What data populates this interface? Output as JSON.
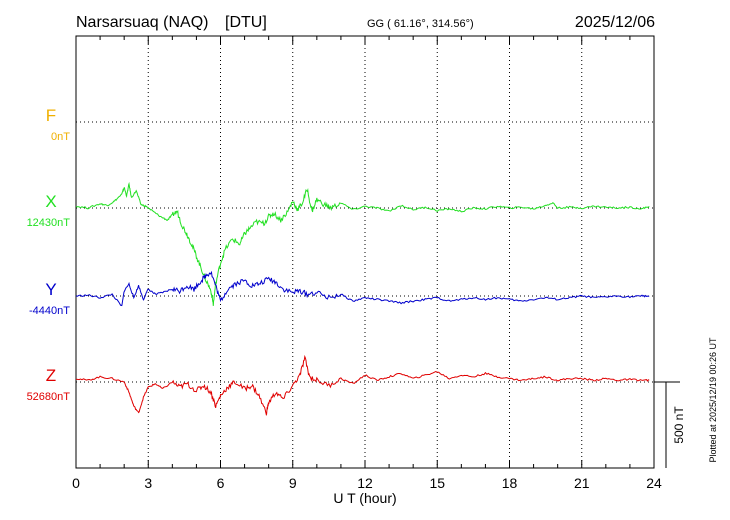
{
  "header": {
    "station": "Narsarsuaq (NAQ)",
    "source": "[DTU]",
    "coords": "GG ( 61.16°, 314.56°)",
    "date": "2025/12/06"
  },
  "footer": {
    "plotted": "Plotted at 2025/12/19 00:26 UT"
  },
  "colors": {
    "F": "#f0b000",
    "X": "#22e022",
    "Y": "#0000cc",
    "Z": "#e00000",
    "grid": "#000000"
  },
  "chart_data": {
    "type": "line",
    "xlabel": "U T (hour)",
    "xlim": [
      0,
      24
    ],
    "xticks": [
      "0",
      "3",
      "6",
      "9",
      "12",
      "15",
      "18",
      "21",
      "24"
    ],
    "scale_bar_label": "500 nT",
    "scale_bar_nT": 500,
    "series": [
      {
        "name": "F",
        "baseline_label": "0nT",
        "baseline_nT": 0,
        "x": [],
        "values": []
      },
      {
        "name": "X",
        "baseline_label": "12430nT",
        "baseline_nT": 12430,
        "x": [
          0,
          0.5,
          1.0,
          1.3,
          1.6,
          1.9,
          2.0,
          2.1,
          2.2,
          2.3,
          2.5,
          2.7,
          2.9,
          3.2,
          3.5,
          3.8,
          4.0,
          4.2,
          4.4,
          4.6,
          4.8,
          5.0,
          5.2,
          5.4,
          5.6,
          5.7,
          5.8,
          6.0,
          6.2,
          6.5,
          6.8,
          7.0,
          7.2,
          7.5,
          7.8,
          8.0,
          8.2,
          8.5,
          8.8,
          9.0,
          9.2,
          9.4,
          9.6,
          9.8,
          10.0,
          10.3,
          10.6,
          11.0,
          11.5,
          12.0,
          12.5,
          13.0,
          13.5,
          14.0,
          14.5,
          15.0,
          15.5,
          16.0,
          16.5,
          17.0,
          17.5,
          18.0,
          18.5,
          19.0,
          19.5,
          19.8,
          20.0,
          20.5,
          21.0,
          21.5,
          22.0,
          22.5,
          23.0,
          23.5,
          23.8
        ],
        "values": [
          10,
          0,
          25,
          15,
          40,
          80,
          120,
          70,
          140,
          60,
          100,
          20,
          10,
          -20,
          -50,
          -70,
          -40,
          -20,
          -100,
          -150,
          -210,
          -280,
          -350,
          -420,
          -480,
          -560,
          -440,
          -320,
          -240,
          -180,
          -210,
          -150,
          -120,
          -80,
          -90,
          -50,
          -30,
          -70,
          -20,
          40,
          -10,
          30,
          110,
          -20,
          50,
          20,
          0,
          30,
          -10,
          10,
          0,
          -20,
          15,
          -10,
          5,
          -15,
          -5,
          -20,
          0,
          -5,
          10,
          0,
          5,
          -5,
          15,
          30,
          0,
          5,
          0,
          10,
          5,
          0,
          5,
          -5,
          10
        ]
      },
      {
        "name": "Y",
        "baseline_label": "-4440nT",
        "baseline_nT": -4440,
        "x": [
          0,
          0.5,
          1.0,
          1.5,
          1.9,
          2.0,
          2.2,
          2.4,
          2.6,
          2.8,
          3.0,
          3.3,
          3.6,
          4.0,
          4.3,
          4.6,
          4.9,
          5.2,
          5.4,
          5.6,
          5.8,
          6.0,
          6.3,
          6.6,
          7.0,
          7.3,
          7.6,
          8.0,
          8.3,
          8.6,
          9.0,
          9.3,
          9.6,
          10.0,
          10.5,
          11.0,
          11.5,
          12.0,
          12.5,
          13.0,
          13.5,
          14.0,
          14.5,
          15.0,
          15.5,
          16.0,
          16.5,
          17.0,
          17.5,
          18.0,
          18.5,
          19.0,
          19.5,
          20.0,
          20.5,
          21.0,
          21.5,
          22.0,
          22.5,
          23.0,
          23.5,
          23.8
        ],
        "values": [
          0,
          5,
          -10,
          10,
          -60,
          30,
          70,
          -10,
          60,
          -20,
          40,
          10,
          20,
          40,
          30,
          60,
          40,
          90,
          120,
          140,
          60,
          -30,
          40,
          70,
          90,
          60,
          70,
          100,
          80,
          40,
          20,
          30,
          10,
          20,
          -10,
          10,
          -30,
          -10,
          -20,
          -30,
          -40,
          -30,
          -20,
          -10,
          -30,
          -20,
          -10,
          -20,
          -10,
          -20,
          -30,
          -20,
          -10,
          -20,
          -10,
          0,
          -10,
          -5,
          0,
          -5,
          0,
          0
        ]
      },
      {
        "name": "Z",
        "baseline_label": "52680nT",
        "baseline_nT": 52680,
        "x": [
          0,
          0.5,
          1.0,
          1.5,
          2.0,
          2.2,
          2.4,
          2.6,
          2.8,
          3.0,
          3.3,
          3.6,
          4.0,
          4.3,
          4.6,
          5.0,
          5.3,
          5.6,
          5.8,
          6.0,
          6.3,
          6.6,
          7.0,
          7.3,
          7.6,
          7.9,
          8.0,
          8.3,
          8.6,
          9.0,
          9.3,
          9.5,
          9.7,
          10.0,
          10.5,
          11.0,
          11.5,
          12.0,
          12.5,
          13.0,
          13.5,
          14.0,
          14.5,
          15.0,
          15.5,
          16.0,
          16.5,
          17.0,
          17.5,
          18.0,
          18.5,
          19.0,
          19.5,
          20.0,
          20.5,
          21.0,
          21.5,
          22.0,
          22.5,
          23.0,
          23.5,
          23.8
        ],
        "values": [
          20,
          10,
          30,
          20,
          0,
          -60,
          -140,
          -180,
          -90,
          -30,
          -10,
          -40,
          0,
          -30,
          -10,
          -50,
          -20,
          -60,
          -140,
          -80,
          -30,
          0,
          -40,
          -20,
          -80,
          -180,
          -120,
          -60,
          -100,
          -20,
          40,
          140,
          30,
          10,
          -20,
          20,
          -10,
          40,
          10,
          30,
          50,
          20,
          40,
          60,
          20,
          40,
          30,
          50,
          30,
          20,
          10,
          20,
          30,
          10,
          20,
          20,
          10,
          20,
          10,
          15,
          10,
          10
        ]
      }
    ]
  }
}
